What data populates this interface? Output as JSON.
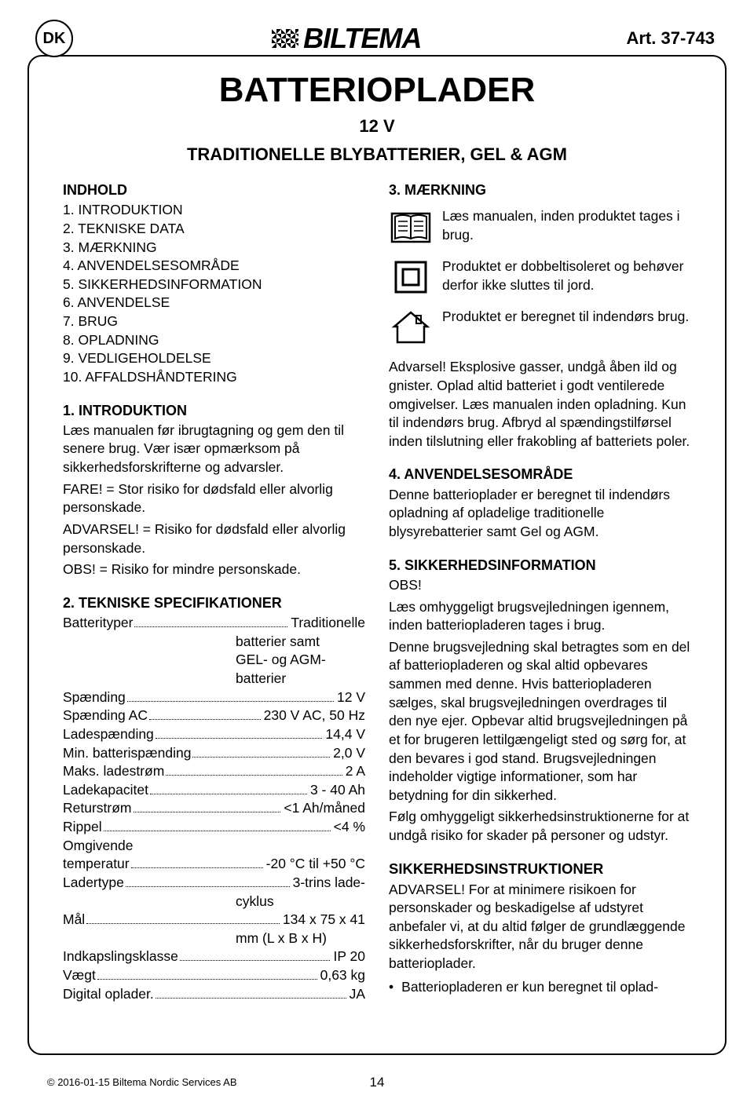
{
  "header": {
    "country_code": "DK",
    "logo_text": "BILTEMA",
    "article": "Art. 37-743"
  },
  "title": {
    "main": "BATTERIOPLADER",
    "sub1": "12 V",
    "sub2": "TRADITIONELLE BLYBATTERIER, GEL & AGM"
  },
  "left": {
    "indhold_head": "INDHOLD",
    "toc": [
      "1. INTRODUKTION",
      "2. TEKNISKE DATA",
      "3. MÆRKNING",
      "4. ANVENDELSESOMRÅDE",
      "5. SIKKERHEDSINFORMATION",
      "6. ANVENDELSE",
      "7. BRUG",
      "8. OPLADNING",
      "9. VEDLIGEHOLDELSE",
      "10. AFFALDSHÅNDTERING"
    ],
    "s1_head": "1. INTRODUKTION",
    "s1_p1": "Læs manualen før ibrugtagning og gem den til senere brug. Vær især opmærksom på sikkerhedsforskrifterne og advarsler.",
    "s1_p2": "FARE! = Stor risiko for dødsfald eller alvorlig personskade.",
    "s1_p3": "ADVARSEL! = Risiko for dødsfald eller alvorlig personskade.",
    "s1_p4": "OBS! = Risiko for mindre personskade.",
    "s2_head": "2. TEKNISKE SPECIFIKATIONER",
    "specs": [
      {
        "label": "Batterityper",
        "value": "Traditionelle"
      },
      {
        "label": "",
        "cont": "batterier samt"
      },
      {
        "label": "",
        "cont": "GEL- og AGM-"
      },
      {
        "label": "",
        "cont": "batterier"
      },
      {
        "label": "Spænding",
        "value": "12 V"
      },
      {
        "label": "Spænding AC",
        "value": "230 V AC, 50 Hz"
      },
      {
        "label": "Ladespænding",
        "value": "14,4 V"
      },
      {
        "label": "Min. batterispænding",
        "value": "2,0 V"
      },
      {
        "label": "Maks. ladestrøm",
        "value": "2 A"
      },
      {
        "label": "Ladekapacitet",
        "value": "3 - 40 Ah"
      },
      {
        "label": "Returstrøm",
        "value": "<1 Ah/måned"
      },
      {
        "label": "Rippel",
        "value": "<4 %"
      },
      {
        "label": "Omgivende",
        "nobreak": true
      },
      {
        "label": "temperatur",
        "value": "-20 °C til +50 °C"
      },
      {
        "label": "Ladertype",
        "value": "3-trins lade-"
      },
      {
        "label": "",
        "cont": "cyklus"
      },
      {
        "label": "Mål",
        "value": "134 x 75 x 41"
      },
      {
        "label": "",
        "cont": "mm (L x B x H)"
      },
      {
        "label": "Indkapslingsklasse",
        "value": "IP 20"
      },
      {
        "label": "Vægt",
        "value": "0,63 kg"
      },
      {
        "label": "Digital oplader.",
        "value": "JA"
      }
    ]
  },
  "right": {
    "s3_head": "3. MÆRKNING",
    "icon1": "Læs manualen, inden produktet tages i brug.",
    "icon2": "Produktet er dobbeltisoleret og behøver derfor ikke sluttes til jord.",
    "icon3": "Produktet er beregnet til indendørs brug.",
    "warn": "Advarsel! Eksplosive gasser, undgå åben ild og gnister. Oplad altid batteriet i godt ventilerede omgivelser. Læs manualen inden opladning. Kun til indendørs brug. Afbryd al spændingstilførsel inden tilslutning eller frakobling af batteriets poler.",
    "s4_head": "4. ANVENDELSESOMRÅDE",
    "s4_p": "Denne batterioplader er beregnet til indendørs opladning af opladelige traditionelle blysyrebatterier samt Gel og AGM.",
    "s5_head": "5. SIKKERHEDSINFORMATION",
    "s5_obs": "OBS!",
    "s5_p1": "Læs omhyggeligt brugsvejledningen igennem, inden batteriopladeren tages i brug.",
    "s5_p2": "Denne brugsvejledning skal betragtes som en del af batteriopladeren og skal altid opbevares sammen med denne. Hvis batteriopladeren sælges, skal brugsvejledningen overdrages til den nye ejer. Opbevar altid brugsvejledningen på et for brugeren lettilgængeligt sted og sørg for, at den bevares i god stand. Brugsvejledningen indeholder vigtige informationer, som har betydning for din sikkerhed.",
    "s5_p3": "Følg omhyggeligt sikkerhedsinstruktionerne for at undgå risiko for skader på personer og udstyr.",
    "s5_sub": "SIKKERHEDSINSTRUKTIONER",
    "s5_p4": "ADVARSEL! For at minimere risikoen for personskader og beskadigelse af udstyret anbefaler vi, at du altid følger de grundlæggende sikkerhedsforskrifter, når du bruger denne batterioplader.",
    "s5_bullet": "Batteriopladeren er kun beregnet til oplad-"
  },
  "footer": {
    "copyright": "© 2016-01-15 Biltema Nordic Services AB",
    "page": "14"
  }
}
